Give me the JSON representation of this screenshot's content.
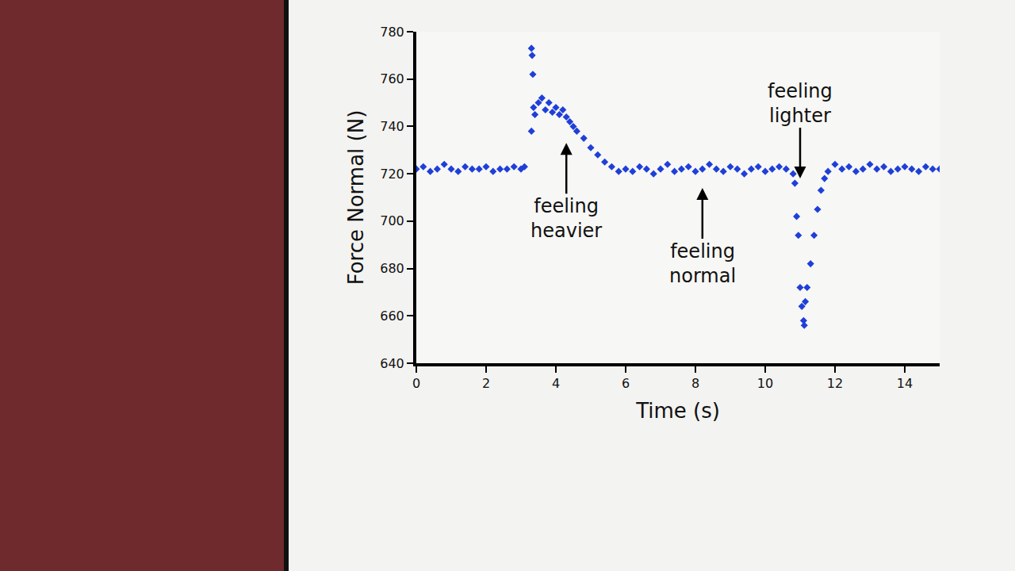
{
  "chart_data": {
    "type": "scatter",
    "marker": "diamond",
    "color": "#1f3fd8",
    "x_label": "Time (s)",
    "y_label": "Force Normal (N)",
    "xlim": [
      0,
      15
    ],
    "ylim": [
      640,
      780
    ],
    "xticks": [
      0,
      2,
      4,
      6,
      8,
      10,
      12,
      14
    ],
    "yticks": [
      640,
      660,
      680,
      700,
      720,
      740,
      760,
      780
    ],
    "grid": false,
    "x": [
      0,
      0.2,
      0.4,
      0.6,
      0.8,
      1.0,
      1.2,
      1.4,
      1.6,
      1.8,
      2.0,
      2.2,
      2.4,
      2.6,
      2.8,
      3.0,
      3.1,
      3.3,
      3.3,
      3.32,
      3.34,
      3.36,
      3.4,
      3.5,
      3.6,
      3.7,
      3.8,
      3.9,
      4.0,
      4.1,
      4.2,
      4.3,
      4.4,
      4.5,
      4.6,
      4.8,
      5.0,
      5.2,
      5.4,
      5.6,
      5.8,
      6.0,
      6.2,
      6.4,
      6.6,
      6.8,
      7.0,
      7.2,
      7.4,
      7.6,
      7.8,
      8.0,
      8.2,
      8.4,
      8.6,
      8.8,
      9.0,
      9.2,
      9.4,
      9.6,
      9.8,
      10.0,
      10.2,
      10.4,
      10.6,
      10.8,
      10.85,
      10.9,
      10.95,
      11.0,
      11.05,
      11.1,
      11.12,
      11.15,
      11.2,
      11.3,
      11.4,
      11.5,
      11.6,
      11.7,
      11.8,
      12.0,
      12.2,
      12.4,
      12.6,
      12.8,
      13.0,
      13.2,
      13.4,
      13.6,
      13.8,
      14.0,
      14.2,
      14.4,
      14.6,
      14.8,
      15.0
    ],
    "values": [
      722,
      723,
      721,
      722,
      724,
      722,
      721,
      723,
      722,
      722,
      723,
      721,
      722,
      722,
      723,
      722,
      723,
      738,
      773,
      770,
      762,
      748,
      745,
      750,
      752,
      747,
      750,
      746,
      748,
      745,
      747,
      744,
      742,
      740,
      738,
      735,
      731,
      728,
      725,
      723,
      721,
      722,
      721,
      723,
      722,
      720,
      722,
      724,
      721,
      722,
      723,
      721,
      722,
      724,
      722,
      721,
      723,
      722,
      720,
      722,
      723,
      721,
      722,
      723,
      722,
      720,
      716,
      702,
      694,
      672,
      664,
      658,
      656,
      666,
      672,
      682,
      694,
      705,
      713,
      718,
      721,
      724,
      722,
      723,
      721,
      722,
      724,
      722,
      723,
      721,
      722,
      723,
      722,
      721,
      723,
      722,
      722
    ],
    "annotations": [
      {
        "text": "feeling heavier",
        "x": 4.3,
        "y": 733,
        "direction": "up"
      },
      {
        "text": "feeling normal",
        "x": 8.2,
        "y": 714,
        "direction": "up"
      },
      {
        "text": "feeling lighter",
        "x": 11.0,
        "y": 718,
        "direction": "down"
      }
    ]
  }
}
